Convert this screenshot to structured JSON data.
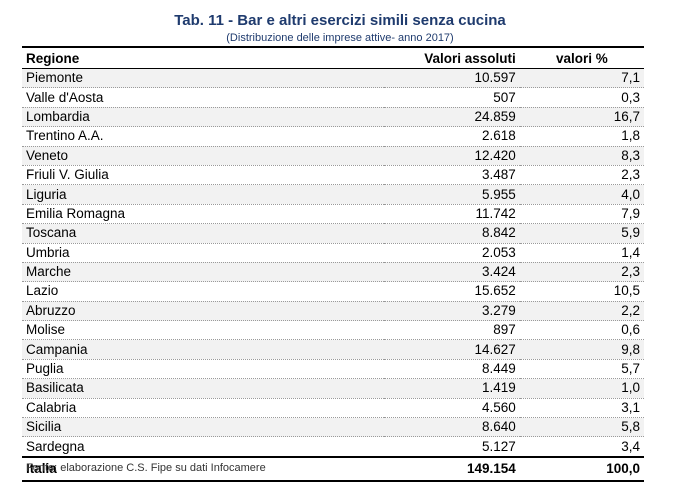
{
  "title": "Tab. 11 - Bar e altri esercizi simili senza cucina",
  "subtitle": "(Distribuzione delle imprese attive- anno 2017)",
  "headers": {
    "region": "Regione",
    "absolute": "Valori assoluti",
    "percent": "valori %"
  },
  "rows": [
    {
      "region": "Piemonte",
      "absolute": "10.597",
      "percent": "7,1"
    },
    {
      "region": "Valle d'Aosta",
      "absolute": "507",
      "percent": "0,3"
    },
    {
      "region": "Lombardia",
      "absolute": "24.859",
      "percent": "16,7"
    },
    {
      "region": "Trentino A.A.",
      "absolute": "2.618",
      "percent": "1,8"
    },
    {
      "region": "Veneto",
      "absolute": "12.420",
      "percent": "8,3"
    },
    {
      "region": "Friuli V. Giulia",
      "absolute": "3.487",
      "percent": "2,3"
    },
    {
      "region": "Liguria",
      "absolute": "5.955",
      "percent": "4,0"
    },
    {
      "region": "Emilia Romagna",
      "absolute": "11.742",
      "percent": "7,9"
    },
    {
      "region": "Toscana",
      "absolute": "8.842",
      "percent": "5,9"
    },
    {
      "region": "Umbria",
      "absolute": "2.053",
      "percent": "1,4"
    },
    {
      "region": "Marche",
      "absolute": "3.424",
      "percent": "2,3"
    },
    {
      "region": "Lazio",
      "absolute": "15.652",
      "percent": "10,5"
    },
    {
      "region": "Abruzzo",
      "absolute": "3.279",
      "percent": "2,2"
    },
    {
      "region": "Molise",
      "absolute": "897",
      "percent": "0,6"
    },
    {
      "region": "Campania",
      "absolute": "14.627",
      "percent": "9,8"
    },
    {
      "region": "Puglia",
      "absolute": "8.449",
      "percent": "5,7"
    },
    {
      "region": "Basilicata",
      "absolute": "1.419",
      "percent": "1,0"
    },
    {
      "region": "Calabria",
      "absolute": "4.560",
      "percent": "3,1"
    },
    {
      "region": "Sicilia",
      "absolute": "8.640",
      "percent": "5,8"
    },
    {
      "region": "Sardegna",
      "absolute": "5.127",
      "percent": "3,4"
    }
  ],
  "total": {
    "region": "Italia",
    "absolute": "149.154",
    "percent": "100,0"
  },
  "source": "Fonte: elaborazione C.S. Fipe su dati Infocamere",
  "colors": {
    "title": "#1f3b6e",
    "stripe": "#f2f2f2"
  }
}
